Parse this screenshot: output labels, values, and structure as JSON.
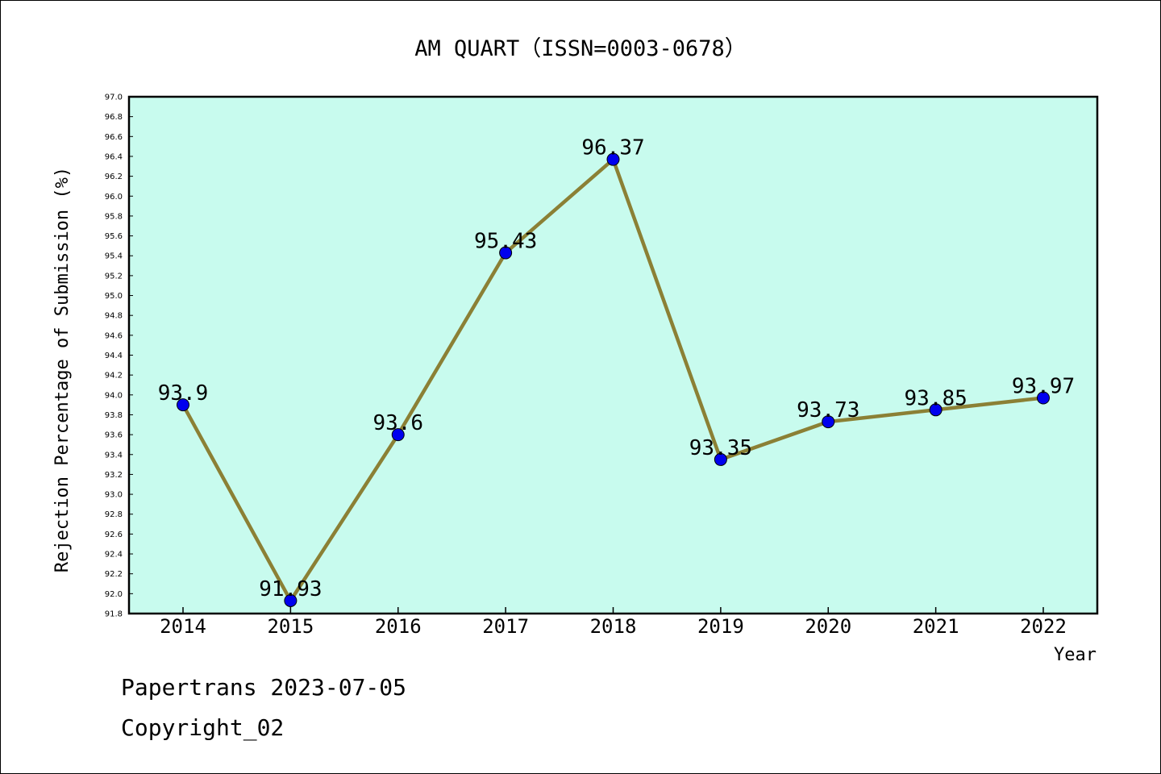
{
  "chart_data": {
    "type": "line",
    "title": "AM QUART（ISSN=0003-0678）",
    "xlabel": "Year",
    "ylabel": "Rejection Percentage of Submission (%)",
    "categories": [
      "2014",
      "2015",
      "2016",
      "2017",
      "2018",
      "2019",
      "2020",
      "2021",
      "2022"
    ],
    "series": [
      {
        "values": [
          93.9,
          91.93,
          93.6,
          95.43,
          96.37,
          93.35,
          93.73,
          93.85,
          93.97
        ],
        "labels": [
          "93.9",
          "91.93",
          "93.6",
          "95.43",
          "96.37",
          "93.35",
          "93.73",
          "93.85",
          "93.97"
        ]
      }
    ],
    "ylim": [
      91.8,
      97.0
    ],
    "ytick_step": 0.2,
    "colors": {
      "plot_background": "#c8fbee",
      "line": "#8b8035",
      "marker": "#0000ee"
    },
    "grid": false
  },
  "footer": {
    "line1": "Papertrans 2023-07-05",
    "line2": "Copyright_02"
  }
}
